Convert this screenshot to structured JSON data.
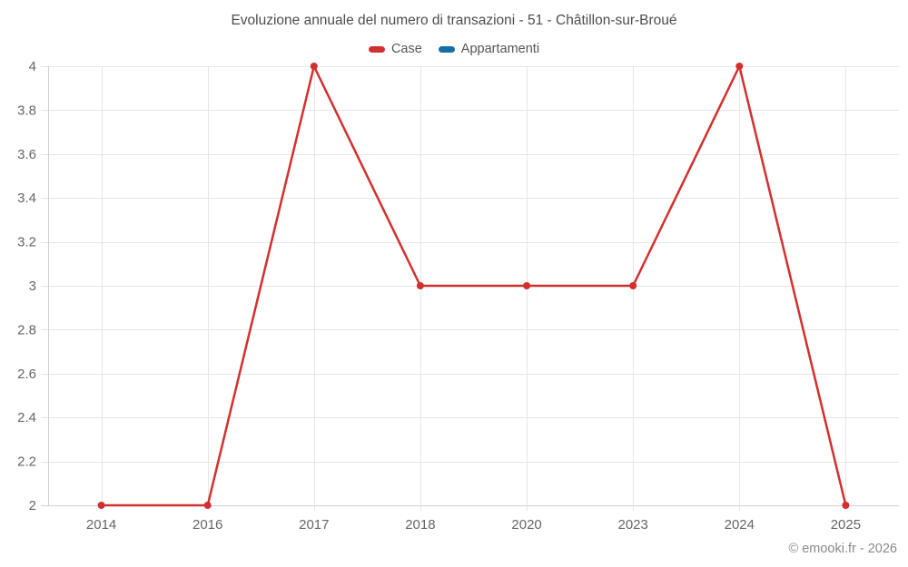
{
  "watermark": "© emooki.fr - 2026",
  "colors": {
    "case_red": "#d2302e",
    "appartamenti_blue": "#136fa5",
    "grid": "#e6e6e6",
    "axis": "#d0d0d0",
    "title_text": "#4d4d4d",
    "label_text": "#666666",
    "legend_text": "#555555",
    "watermark_text": "#8a8a8a"
  },
  "chart_data": {
    "type": "line",
    "title": "Evoluzione annuale del numero di transazioni - 51 - Châtillon-sur-Broué",
    "categories": [
      "2014",
      "2016",
      "2017",
      "2018",
      "2020",
      "2023",
      "2024",
      "2025"
    ],
    "series": [
      {
        "name": "Case",
        "color": "#d2302e",
        "values": [
          2,
          2,
          4,
          3,
          3,
          3,
          4,
          2
        ]
      },
      {
        "name": "Appartamenti",
        "color": "#136fa5",
        "values": []
      }
    ],
    "xlabel": "",
    "ylabel": "",
    "ylim": [
      2,
      4
    ],
    "ytick_step": 0.2,
    "ytick_labels": [
      "2",
      "2.2",
      "2.4",
      "2.6",
      "2.8",
      "3",
      "3.2",
      "3.4",
      "3.6",
      "3.8",
      "4"
    ],
    "grid": true,
    "legend_position": "top",
    "marker": "circle"
  }
}
